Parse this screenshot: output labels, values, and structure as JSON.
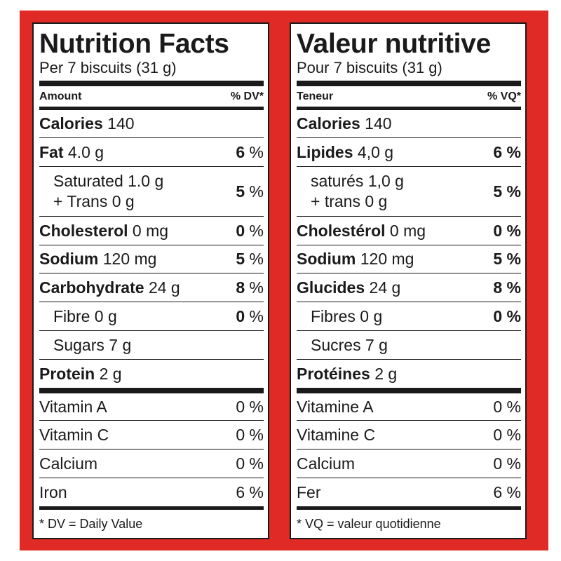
{
  "colors": {
    "frame": "#e02a25",
    "text": "#1a1a1a"
  },
  "en": {
    "title": "Nutrition Facts",
    "serving": "Per 7 biscuits (31 g)",
    "header_amount": "Amount",
    "header_dv": "% DV*",
    "calories_label": "Calories",
    "calories_value": "140",
    "fat_label": "Fat",
    "fat_amount": "4.0 g",
    "fat_pct": "6",
    "sat_line1": "Saturated 1.0 g",
    "sat_line2": "+ Trans 0 g",
    "sat_pct": "5",
    "chol_label": "Cholesterol",
    "chol_amount": "0 mg",
    "chol_pct": "0",
    "sodium_label": "Sodium",
    "sodium_amount": "120 mg",
    "sodium_pct": "5",
    "carb_label": "Carbohydrate",
    "carb_amount": "24 g",
    "carb_pct": "8",
    "fibre": "Fibre 0 g",
    "fibre_pct": "0",
    "sugars": "Sugars 7 g",
    "protein_label": "Protein",
    "protein_amount": "2 g",
    "vitamins": [
      {
        "label": "Vitamin A",
        "value": "0 %"
      },
      {
        "label": "Vitamin C",
        "value": "0 %"
      },
      {
        "label": "Calcium",
        "value": "0 %"
      },
      {
        "label": "Iron",
        "value": "6 %"
      }
    ],
    "footnote": "* DV = Daily Value"
  },
  "fr": {
    "title": "Valeur nutritive",
    "serving": "Pour 7 biscuits (31 g)",
    "header_amount": "Teneur",
    "header_dv": "% VQ*",
    "calories_label": "Calories",
    "calories_value": "140",
    "fat_label": "Lipides",
    "fat_amount": "4,0 g",
    "fat_pct": "6 %",
    "sat_line1": "saturés 1,0 g",
    "sat_line2": "+ trans 0 g",
    "sat_pct": "5 %",
    "chol_label": "Cholestérol",
    "chol_amount": "0 mg",
    "chol_pct": "0 %",
    "sodium_label": "Sodium",
    "sodium_amount": "120 mg",
    "sodium_pct": "5 %",
    "carb_label": "Glucides",
    "carb_amount": "24 g",
    "carb_pct": "8 %",
    "fibre": "Fibres 0 g",
    "fibre_pct": "0 %",
    "sugars": "Sucres 7 g",
    "protein_label": "Protéines",
    "protein_amount": "2 g",
    "vitamins": [
      {
        "label": "Vitamine A",
        "value": "0 %"
      },
      {
        "label": "Vitamine C",
        "value": "0 %"
      },
      {
        "label": "Calcium",
        "value": "0 %"
      },
      {
        "label": "Fer",
        "value": "6 %"
      }
    ],
    "footnote": "* VQ = valeur quotidienne"
  }
}
